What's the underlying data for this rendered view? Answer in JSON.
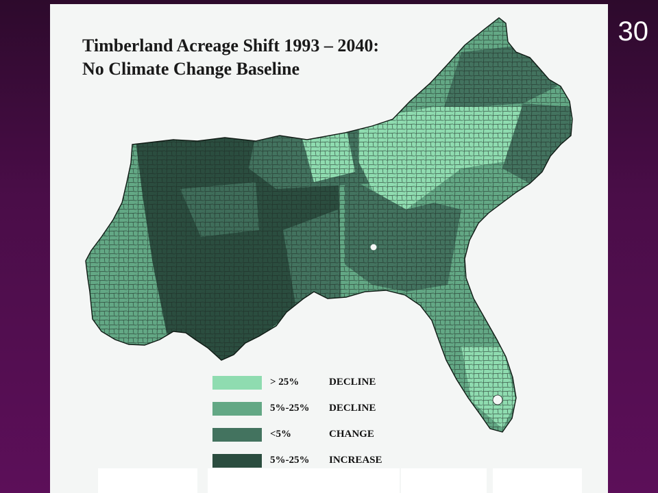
{
  "slide_number": "30",
  "title": {
    "line1": "Timberland Acreage Shift 1993 – 2040:",
    "line2": "No Climate Change Baseline"
  },
  "colors": {
    "slide_background": "#4a0d48",
    "panel_background": "#f4f6f5",
    "large_decline": "#8fdcb0",
    "decline": "#63a885",
    "no_change": "#43735f",
    "increase": "#2b4d3f",
    "county_lines": "#1d2a24"
  },
  "legend": [
    {
      "range": "> 25%",
      "label": "DECLINE",
      "color_key": "large_decline"
    },
    {
      "range": "5%-25%",
      "label": "DECLINE",
      "color_key": "decline"
    },
    {
      "range": "<5%",
      "label": "CHANGE",
      "color_key": "no_change"
    },
    {
      "range": "5%-25%",
      "label": "INCREASE",
      "color_key": "increase"
    }
  ],
  "map": {
    "subject": "Southeastern United States counties",
    "regions": [
      {
        "area": "Texas / Louisiana west",
        "class": "decline"
      },
      {
        "area": "Arkansas / Louisiana / Mississippi",
        "class": "increase"
      },
      {
        "area": "Tennessee / Kentucky",
        "class": "no_change"
      },
      {
        "area": "Virginia / North Carolina",
        "class": "decline"
      },
      {
        "area": "Piedmont",
        "class": "large_decline"
      },
      {
        "area": "Georgia / South Carolina",
        "class": "no_change"
      },
      {
        "area": "Coastal plain / Florida",
        "class": "decline"
      },
      {
        "area": "South Florida",
        "class": "large_decline"
      }
    ]
  }
}
